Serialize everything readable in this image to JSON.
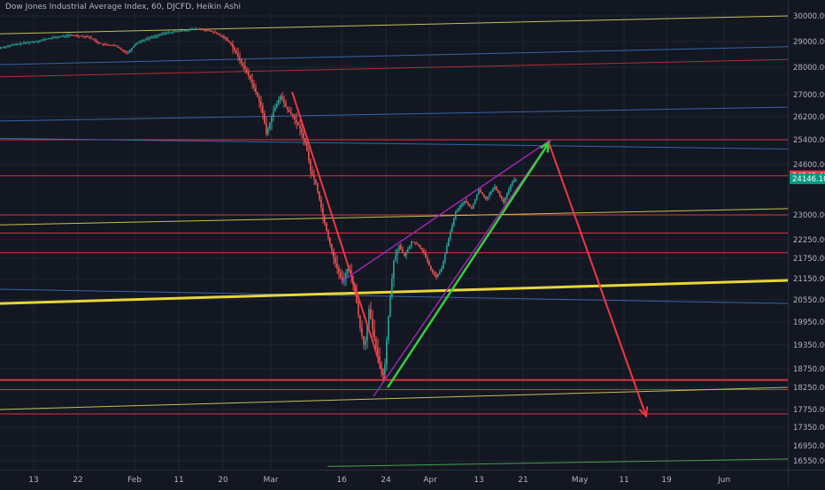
{
  "chart_data": {
    "type": "candlestick",
    "title": "Dow Jones Industrial Average Index, 60, DJCFD, Heikin Ashi",
    "price_axis": {
      "ticks": [
        30000,
        29000,
        28000,
        27000,
        26200,
        25400,
        24600,
        23000,
        22250,
        21750,
        21150,
        20550,
        19950,
        19350,
        18750,
        18250,
        17750,
        17350,
        16950,
        16550
      ]
    },
    "time_axis": {
      "ticks": [
        "13",
        "22",
        "Feb",
        "11",
        "20",
        "Mar",
        "16",
        "24",
        "Apr",
        "13",
        "21",
        "May",
        "11",
        "19",
        "Jun"
      ]
    },
    "price_labels": [
      {
        "value": 24242.48,
        "text": "24242.48",
        "color": "#f23645"
      },
      {
        "value": 24146.1,
        "text": "24146.10",
        "color": "#089981"
      }
    ],
    "price_path": [
      [
        0,
        28750
      ],
      [
        20,
        28900
      ],
      [
        40,
        29000
      ],
      [
        60,
        29150
      ],
      [
        80,
        29250
      ],
      [
        100,
        29200
      ],
      [
        115,
        28900
      ],
      [
        130,
        28850
      ],
      [
        145,
        28550
      ],
      [
        155,
        28950
      ],
      [
        170,
        29150
      ],
      [
        190,
        29350
      ],
      [
        210,
        29450
      ],
      [
        225,
        29500
      ],
      [
        240,
        29400
      ],
      [
        255,
        29150
      ],
      [
        262,
        28900
      ],
      [
        270,
        28400
      ],
      [
        282,
        27700
      ],
      [
        290,
        27100
      ],
      [
        297,
        26500
      ],
      [
        302,
        25600
      ],
      [
        310,
        26400
      ],
      [
        318,
        26950
      ],
      [
        325,
        26500
      ],
      [
        332,
        26200
      ],
      [
        340,
        25800
      ],
      [
        347,
        25200
      ],
      [
        352,
        24400
      ],
      [
        358,
        24000
      ],
      [
        365,
        23100
      ],
      [
        372,
        22300
      ],
      [
        380,
        21600
      ],
      [
        388,
        21050
      ],
      [
        395,
        21500
      ],
      [
        402,
        20800
      ],
      [
        408,
        19800
      ],
      [
        413,
        19250
      ],
      [
        418,
        20300
      ],
      [
        424,
        19500
      ],
      [
        430,
        18850
      ],
      [
        435,
        18550
      ],
      [
        440,
        20100
      ],
      [
        446,
        21700
      ],
      [
        452,
        22100
      ],
      [
        458,
        21800
      ],
      [
        466,
        22200
      ],
      [
        474,
        22100
      ],
      [
        480,
        21900
      ],
      [
        488,
        21400
      ],
      [
        494,
        21200
      ],
      [
        500,
        21450
      ],
      [
        508,
        22300
      ],
      [
        516,
        23100
      ],
      [
        526,
        23450
      ],
      [
        534,
        23200
      ],
      [
        542,
        23800
      ],
      [
        550,
        23500
      ],
      [
        560,
        23900
      ],
      [
        570,
        23400
      ],
      [
        578,
        23950
      ],
      [
        583,
        24146
      ]
    ],
    "annotations": {
      "levels": [
        {
          "y": 25400,
          "color": "#f23645",
          "width": 1
        },
        {
          "y": 24242.48,
          "color": "#f23645",
          "width": 1
        },
        {
          "y": 23000,
          "color": "#f23645",
          "width": 1
        },
        {
          "y": 22450,
          "color": "#f23645",
          "width": 1
        },
        {
          "y": 21900,
          "color": "#f23645",
          "width": 1
        },
        {
          "y": 18450,
          "color": "#f23645",
          "width": 2
        },
        {
          "y": 18200,
          "color": "#f23645",
          "width": 1
        },
        {
          "y": 17650,
          "color": "#f23645",
          "width": 1
        }
      ],
      "channels": [
        {
          "x1": 0,
          "y1": 29300,
          "x2": 890,
          "y2": 30000,
          "color": "#d6d35f",
          "width": 1
        },
        {
          "x1": 0,
          "y1": 28100,
          "x2": 890,
          "y2": 28800,
          "color": "#3a6db7",
          "width": 1
        },
        {
          "x1": 0,
          "y1": 27650,
          "x2": 890,
          "y2": 28300,
          "color": "#c43036",
          "width": 1
        },
        {
          "x1": 0,
          "y1": 26050,
          "x2": 890,
          "y2": 26550,
          "color": "#3a6db7",
          "width": 1
        },
        {
          "x1": 0,
          "y1": 25450,
          "x2": 890,
          "y2": 25100,
          "color": "#3a6db7",
          "width": 1
        },
        {
          "x1": 0,
          "y1": 22700,
          "x2": 890,
          "y2": 23200,
          "color": "#e0d350",
          "width": 1
        },
        {
          "x1": 0,
          "y1": 20850,
          "x2": 890,
          "y2": 20450,
          "color": "#3a6db7",
          "width": 1
        },
        {
          "x1": 0,
          "y1": 20450,
          "x2": 890,
          "y2": 21100,
          "color": "#ffeb3b",
          "width": 3
        },
        {
          "x1": 0,
          "y1": 17750,
          "x2": 890,
          "y2": 18250,
          "color": "#d6d35f",
          "width": 1
        },
        {
          "x1": 370,
          "y1": 16400,
          "x2": 890,
          "y2": 16600,
          "color": "#4caf50",
          "width": 1
        }
      ],
      "trendlines": [
        {
          "x1": 330,
          "y1": 27100,
          "x2": 435,
          "y2": 18450,
          "color": "#f23645",
          "width": 2
        },
        {
          "x1": 385,
          "y1": 21050,
          "x2": 622,
          "y2": 25400,
          "color": "#9c27b0",
          "width": 1.5
        },
        {
          "x1": 422,
          "y1": 18050,
          "x2": 622,
          "y2": 25400,
          "color": "#9c27b0",
          "width": 1.5
        }
      ],
      "arrows": [
        {
          "x1": 438,
          "y1": 18250,
          "x2": 620,
          "y2": 25300,
          "color": "#34d13a",
          "width": 2.5
        },
        {
          "x1": 620,
          "y1": 25300,
          "x2": 730,
          "y2": 17600,
          "color": "#f23645",
          "width": 2
        }
      ]
    },
    "colors": {
      "background": "#131722",
      "grid": "#1f2433",
      "up": "#26a69a",
      "down": "#ef5350",
      "text": "#b2b5be"
    }
  }
}
